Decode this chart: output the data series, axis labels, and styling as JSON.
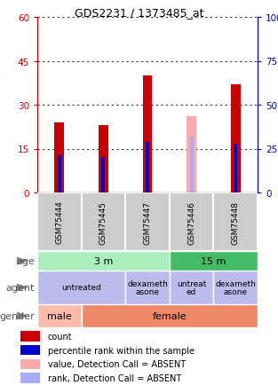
{
  "title": "GDS2231 / 1373485_at",
  "samples": [
    "GSM75444",
    "GSM75445",
    "GSM75447",
    "GSM75446",
    "GSM75448"
  ],
  "count_values": [
    24,
    23,
    40,
    0,
    37
  ],
  "percentile_values": [
    21,
    20,
    29,
    19,
    28
  ],
  "absent_count_values": [
    0,
    0,
    0,
    26,
    0
  ],
  "absent_rank_values": [
    0,
    0,
    0,
    19,
    0
  ],
  "is_absent": [
    false,
    false,
    false,
    true,
    false
  ],
  "bar_red_color": "#cc0000",
  "bar_pink_color": "#ffaaaa",
  "bar_blue_color": "#0000cc",
  "bar_lightblue_color": "#aaaaff",
  "ylim_left": [
    0,
    60
  ],
  "ylim_right": [
    0,
    100
  ],
  "yticks_left": [
    0,
    15,
    30,
    45,
    60
  ],
  "yticks_right": [
    0,
    25,
    50,
    75,
    100
  ],
  "left_axis_color": "#cc0000",
  "right_axis_color": "#0000cc",
  "age_data": [
    {
      "label": "3 m",
      "start": 0,
      "end": 3,
      "color": "#aaeebb"
    },
    {
      "label": "15 m",
      "start": 3,
      "end": 5,
      "color": "#44bb66"
    }
  ],
  "agent_data": [
    {
      "label": "untreated",
      "start": 0,
      "end": 2,
      "color": "#bbbbee"
    },
    {
      "label": "dexameth\nasone",
      "start": 2,
      "end": 3,
      "color": "#bbbbee"
    },
    {
      "label": "untreat\ned",
      "start": 3,
      "end": 4,
      "color": "#bbbbee"
    },
    {
      "label": "dexameth\nasone",
      "start": 4,
      "end": 5,
      "color": "#bbbbee"
    }
  ],
  "gender_data": [
    {
      "label": "male",
      "start": 0,
      "end": 1,
      "color": "#ffbbaa"
    },
    {
      "label": "female",
      "start": 1,
      "end": 5,
      "color": "#ee8866"
    }
  ],
  "legend_items": [
    {
      "color": "#cc0000",
      "label": "count"
    },
    {
      "color": "#0000cc",
      "label": "percentile rank within the sample"
    },
    {
      "color": "#ffaaaa",
      "label": "value, Detection Call = ABSENT"
    },
    {
      "color": "#aaaaff",
      "label": "rank, Detection Call = ABSENT"
    }
  ],
  "row_label_color": "#555555",
  "sample_box_color": "#cccccc",
  "grid_color": "#333333"
}
